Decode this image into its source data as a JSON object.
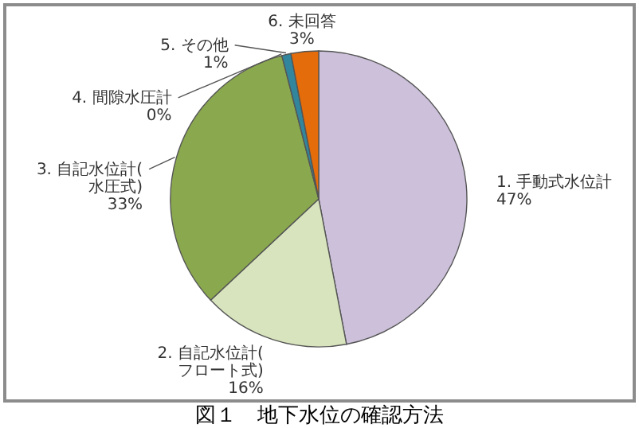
{
  "chart_data": {
    "type": "pie",
    "title": "図１　地下水位の確認方法",
    "categories": [
      "1. 手動式水位計",
      "2. 自記水位計(フロート式)",
      "3. 自記水位計(水圧式)",
      "4. 間隙水圧計",
      "5. その他",
      "6. 未回答"
    ],
    "values": [
      47,
      16,
      33,
      0,
      1,
      3
    ],
    "colors": [
      "#ccc0da",
      "#d7e4bd",
      "#8aa84e",
      "#1f497d",
      "#31859c",
      "#e46c0a"
    ],
    "value_labels": [
      "47%",
      "16%",
      "33%",
      "0%",
      "1%",
      "3%"
    ]
  }
}
